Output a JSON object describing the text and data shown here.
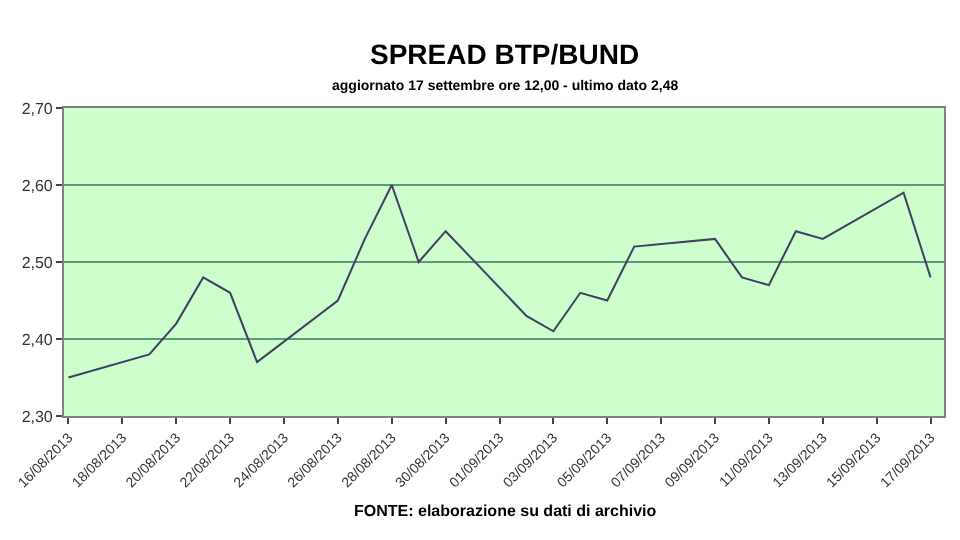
{
  "chart_data": {
    "type": "line",
    "title": "SPREAD BTP/BUND",
    "subtitle": "aggiornato 17 settembre ore 12,00 - ultimo dato 2,48",
    "annotations": [
      "FONTE: elaborazione su dati di archivio"
    ],
    "x": [
      "2013-08-16",
      "2013-08-19",
      "2013-08-20",
      "2013-08-21",
      "2013-08-22",
      "2013-08-23",
      "2013-08-26",
      "2013-08-27",
      "2013-08-28",
      "2013-08-29",
      "2013-08-30",
      "2013-09-02",
      "2013-09-03",
      "2013-09-04",
      "2013-09-05",
      "2013-09-06",
      "2013-09-09",
      "2013-09-10",
      "2013-09-11",
      "2013-09-12",
      "2013-09-13",
      "2013-09-16",
      "2013-09-17"
    ],
    "series": [
      {
        "color": "#404060",
        "values": [
          2.35,
          2.38,
          2.42,
          2.48,
          2.46,
          2.37,
          2.45,
          2.53,
          2.6,
          2.5,
          2.54,
          2.43,
          2.41,
          2.46,
          2.45,
          2.52,
          2.53,
          2.48,
          2.47,
          2.54,
          2.53,
          2.59,
          2.48
        ]
      }
    ],
    "xlim": [
      "2013-08-15T20:00",
      "2013-09-17T12:00"
    ],
    "xticks": [
      {
        "value": "2013-08-16",
        "label": "16/08/2013"
      },
      {
        "value": "2013-08-18",
        "label": "18/08/2013"
      },
      {
        "value": "2013-08-20",
        "label": "20/08/2013"
      },
      {
        "value": "2013-08-22",
        "label": "22/08/2013"
      },
      {
        "value": "2013-08-24",
        "label": "24/08/2013"
      },
      {
        "value": "2013-08-26",
        "label": "26/08/2013"
      },
      {
        "value": "2013-08-28",
        "label": "28/08/2013"
      },
      {
        "value": "2013-08-30",
        "label": "30/08/2013"
      },
      {
        "value": "2013-09-01",
        "label": "01/09/2013"
      },
      {
        "value": "2013-09-03",
        "label": "03/09/2013"
      },
      {
        "value": "2013-09-05",
        "label": "05/09/2013"
      },
      {
        "value": "2013-09-07",
        "label": "07/09/2013"
      },
      {
        "value": "2013-09-09",
        "label": "09/09/2013"
      },
      {
        "value": "2013-09-11",
        "label": "11/09/2013"
      },
      {
        "value": "2013-09-13",
        "label": "13/09/2013"
      },
      {
        "value": "2013-09-15",
        "label": "15/09/2013"
      },
      {
        "value": "2013-09-17",
        "label": "17/09/2013"
      }
    ],
    "ylim": [
      2.3,
      2.7
    ],
    "yticks": [
      {
        "value": 2.3,
        "label": "2,30"
      },
      {
        "value": 2.4,
        "label": "2,40"
      },
      {
        "value": 2.5,
        "label": "2,50"
      },
      {
        "value": 2.6,
        "label": "2,60"
      },
      {
        "value": 2.7,
        "label": "2,70"
      }
    ],
    "grid": "y",
    "marker": "none",
    "line_style": "solid"
  }
}
